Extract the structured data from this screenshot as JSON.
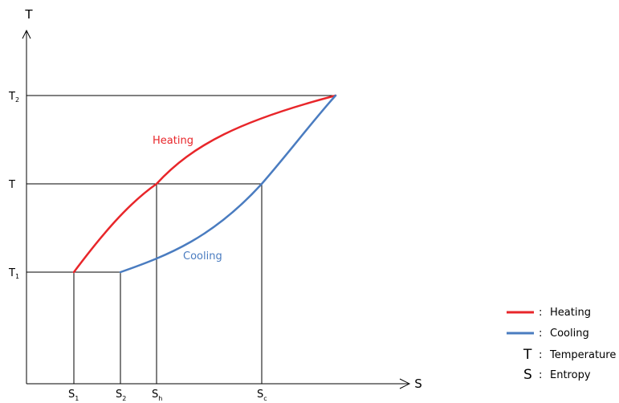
{
  "axes": {
    "y_name": "T",
    "x_name": "S"
  },
  "y_ticks": {
    "t2": {
      "main": "T",
      "sub": "2"
    },
    "t": {
      "main": "T",
      "sub": ""
    },
    "t1": {
      "main": "T",
      "sub": "1"
    }
  },
  "x_ticks": {
    "s1": {
      "main": "S",
      "sub": "1"
    },
    "s2": {
      "main": "S",
      "sub": "2"
    },
    "sh": {
      "main": "S",
      "sub": "h"
    },
    "sc": {
      "main": "S",
      "sub": "c"
    }
  },
  "curves": {
    "heating": {
      "label": "Heating",
      "color": "#e8262a"
    },
    "cooling": {
      "label": "Cooling",
      "color": "#4a7cc0"
    }
  },
  "legend": {
    "colon": ":",
    "items": [
      {
        "symbol": "line",
        "color": "#e8262a",
        "text": "Heating"
      },
      {
        "symbol": "line",
        "color": "#4a7cc0",
        "text": "Cooling"
      },
      {
        "symbol": "T",
        "text": "Temperature"
      },
      {
        "symbol": "S",
        "text": "Entropy"
      }
    ]
  }
}
